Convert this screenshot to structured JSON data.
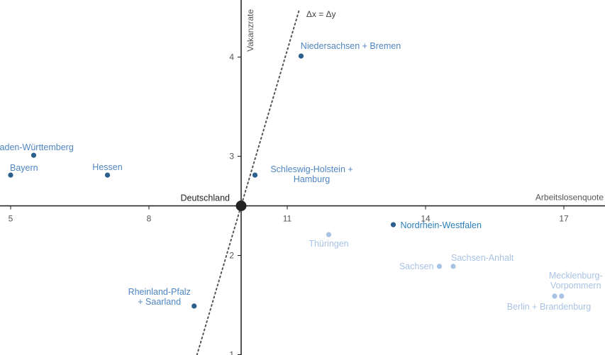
{
  "chart_data": {
    "type": "scatter",
    "title": "",
    "xlabel": "Arbeitslosenquote",
    "ylabel": "Vakanzrate",
    "xlim": [
      5,
      18
    ],
    "ylim": [
      0.95,
      4.5
    ],
    "origin": {
      "x": 10,
      "y": 2.5,
      "label": "Deutschland"
    },
    "x_ticks": [
      5,
      8,
      11,
      14,
      17
    ],
    "y_ticks": [
      1,
      2,
      3,
      4
    ],
    "reference_line": {
      "label": "Δx = Δy",
      "slope": 1,
      "style": "dotted"
    },
    "grid": false,
    "colors": {
      "dark": "#2b5f8c",
      "mid": "#4f86c0",
      "light": "#a9c3e4",
      "origin": "#222222",
      "highlight_text": "#2b7fb8",
      "axis": "#1a1a1a",
      "reference": "#555555"
    },
    "points": [
      {
        "name": "Niedersachsen + Bremen",
        "label_lines": [
          "Niedersachsen + Bremen"
        ],
        "x": 11.3,
        "y": 4.01,
        "shade": "dark",
        "label_pos": "above"
      },
      {
        "name": "Baden-Württemberg",
        "label_lines": [
          "Baden-Württemberg"
        ],
        "x": 5.5,
        "y": 3.01,
        "shade": "dark",
        "label_pos": "above"
      },
      {
        "name": "Bayern",
        "label_lines": [
          "Bayern"
        ],
        "x": 5.0,
        "y": 2.81,
        "shade": "dark",
        "label_pos": "above-right"
      },
      {
        "name": "Hessen",
        "label_lines": [
          "Hessen"
        ],
        "x": 7.1,
        "y": 2.81,
        "shade": "dark",
        "label_pos": "above"
      },
      {
        "name": "Schleswig-Holstein + Hamburg",
        "label_lines": [
          "Schleswig-Holstein +",
          "Hamburg"
        ],
        "x": 10.3,
        "y": 2.81,
        "shade": "dark",
        "label_pos": "right"
      },
      {
        "name": "Nordrhein-Westfalen",
        "label_lines": [
          "Nordrhein-Westfalen"
        ],
        "x": 13.3,
        "y": 2.31,
        "shade": "dark",
        "label_pos": "right-highlight"
      },
      {
        "name": "Thüringen",
        "label_lines": [
          "Thüringen"
        ],
        "x": 11.9,
        "y": 2.21,
        "shade": "light",
        "label_pos": "below"
      },
      {
        "name": "Sachsen",
        "label_lines": [
          "Sachsen"
        ],
        "x": 14.3,
        "y": 1.89,
        "shade": "light",
        "label_pos": "left"
      },
      {
        "name": "Sachsen-Anhalt",
        "label_lines": [
          "Sachsen-Anhalt"
        ],
        "x": 14.6,
        "y": 1.89,
        "shade": "light",
        "label_pos": "above-right"
      },
      {
        "name": "Mecklenburg-Vorpommern",
        "label_lines": [
          "Mecklenburg-",
          "Vorpommern"
        ],
        "x": 16.95,
        "y": 1.59,
        "shade": "light",
        "label_pos": "above"
      },
      {
        "name": "Berlin + Brandenburg",
        "label_lines": [
          "Berlin + Brandenburg"
        ],
        "x": 16.8,
        "y": 1.59,
        "shade": "light",
        "label_pos": "below"
      },
      {
        "name": "Rheinland-Pfalz + Saarland",
        "label_lines": [
          "Rheinland-Pfalz",
          "+ Saarland"
        ],
        "x": 8.98,
        "y": 1.49,
        "shade": "dark",
        "label_pos": "above-left"
      }
    ]
  }
}
